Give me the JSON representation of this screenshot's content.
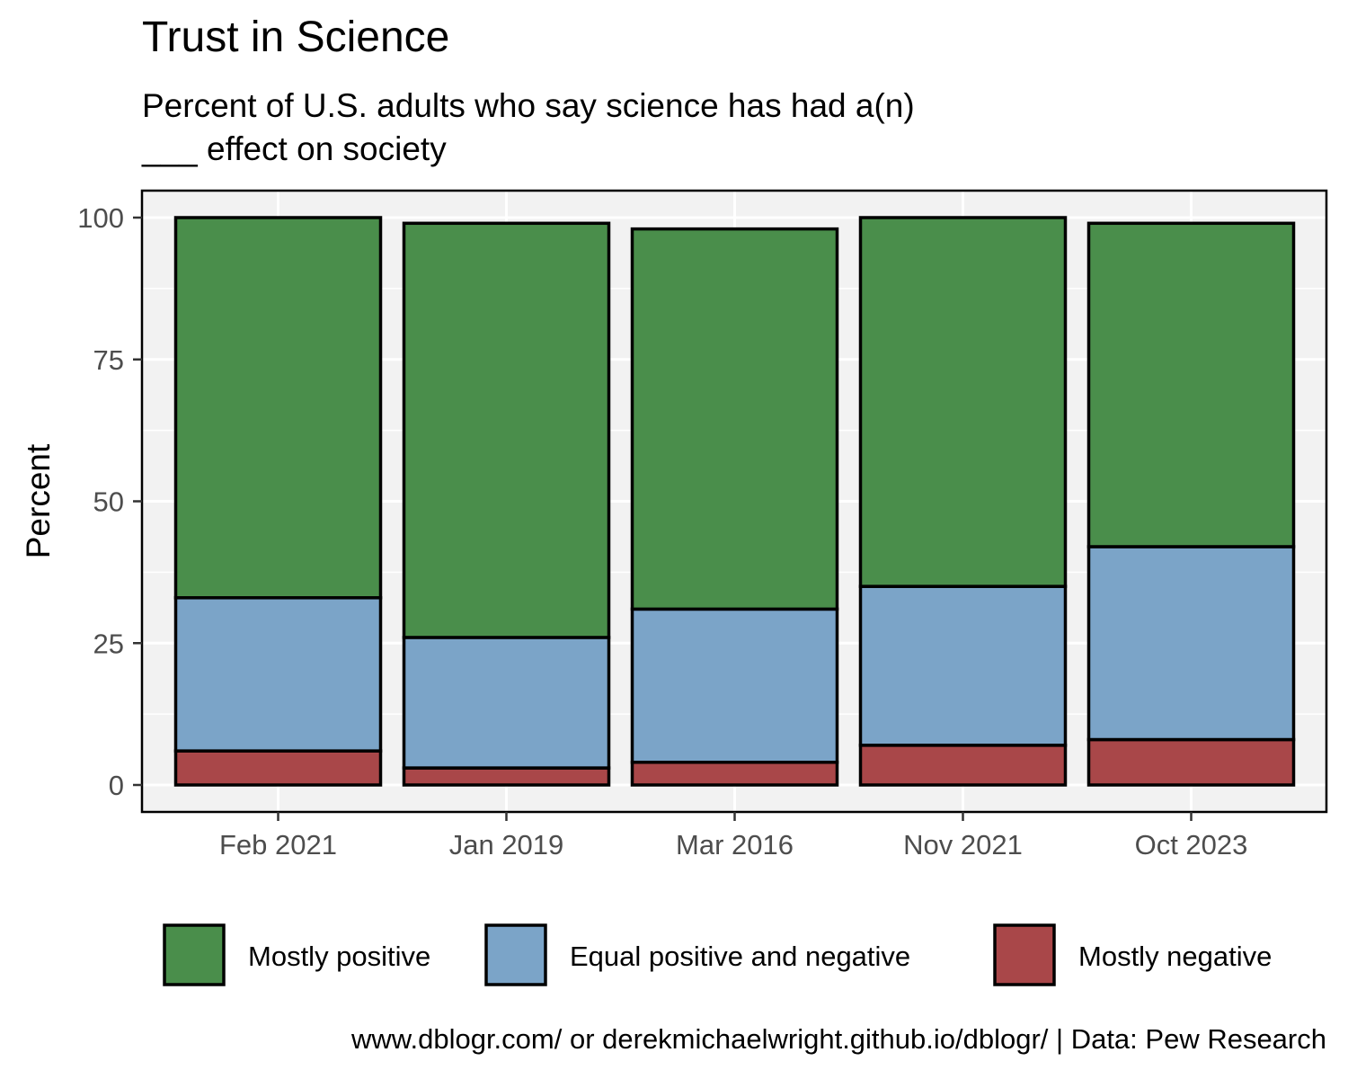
{
  "title": "Trust in Science",
  "subtitle_line1": "Percent of U.S. adults who say science has had a(n)",
  "subtitle_line2": "___ effect on society",
  "caption": "www.dblogr.com/ or derekmichaelwright.github.io/dblogr/ | Data: Pew Research",
  "chart_data": {
    "type": "bar",
    "stacked": true,
    "categories": [
      "Feb 2021",
      "Jan 2019",
      "Mar 2016",
      "Nov 2021",
      "Oct 2023"
    ],
    "series": [
      {
        "name": "Mostly negative",
        "color": "#a94749",
        "values": [
          6,
          3,
          4,
          7,
          8
        ]
      },
      {
        "name": "Equal positive and negative",
        "color": "#7ba4c8",
        "values": [
          27,
          23,
          27,
          28,
          34
        ]
      },
      {
        "name": "Mostly positive",
        "color": "#4a8e4b",
        "values": [
          67,
          73,
          67,
          65,
          57
        ]
      }
    ],
    "legend_order": [
      "Mostly positive",
      "Equal positive and negative",
      "Mostly negative"
    ],
    "xlabel": "",
    "ylabel": "Percent",
    "ylim": [
      0,
      100
    ],
    "yticks": [
      0,
      25,
      50,
      75,
      100
    ],
    "grid": true,
    "legend_position": "bottom",
    "panel_background": "#f2f2f2"
  }
}
